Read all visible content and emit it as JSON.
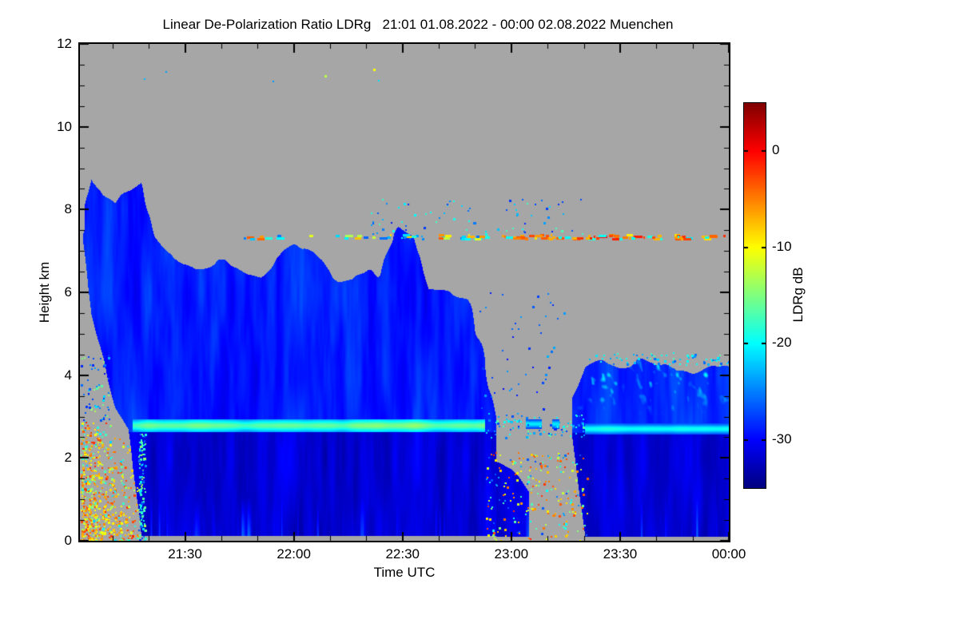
{
  "chart_data": {
    "type": "heatmap",
    "title": "Linear De-Polarization Ratio LDRg   21:01 01.08.2022 - 00:00 02.08.2022 Muenchen",
    "xlabel": "Time UTC",
    "ylabel": "Height km",
    "x_range": [
      21.0167,
      24.0
    ],
    "y_range": [
      0,
      12
    ],
    "x_ticks": [
      {
        "t": 21.5,
        "label": "21:30"
      },
      {
        "t": 22.0,
        "label": "22:00"
      },
      {
        "t": 22.5,
        "label": "22:30"
      },
      {
        "t": 23.0,
        "label": "23:00"
      },
      {
        "t": 23.5,
        "label": "23:30"
      },
      {
        "t": 24.0,
        "label": "00:00"
      }
    ],
    "x_minor_step_minutes": 10,
    "y_ticks": [
      {
        "h": 12,
        "label": "12"
      },
      {
        "h": 10,
        "label": "10"
      },
      {
        "h": 8,
        "label": "8"
      },
      {
        "h": 6,
        "label": "6"
      },
      {
        "h": 4,
        "label": "4"
      },
      {
        "h": 2,
        "label": "2"
      },
      {
        "h": 0,
        "label": "0"
      }
    ],
    "y_minor_step_km": 0.5,
    "grid": false,
    "background_no_data_color": "#a6a6a6",
    "colormap": "jet",
    "colorbar": {
      "label": "LDRg dB",
      "range": [
        -35,
        5
      ],
      "ticks": [
        {
          "v": 0,
          "label": "0"
        },
        {
          "v": -10,
          "label": "-10"
        },
        {
          "v": -20,
          "label": "-20"
        },
        {
          "v": -30,
          "label": "-30"
        }
      ]
    },
    "features": {
      "clouds": [
        {
          "name": "main-precipitating-cloud",
          "seed": 11,
          "t": [
            21.03,
            21.07,
            21.12,
            21.18,
            21.24,
            21.3,
            21.36,
            21.45,
            21.55,
            21.65,
            21.75,
            21.85,
            21.95,
            22.05,
            22.15,
            22.27,
            22.4,
            22.48,
            22.55,
            22.62,
            22.72,
            22.8,
            22.87,
            22.93
          ],
          "top": [
            8.0,
            9.1,
            8.5,
            8.1,
            8.6,
            9.0,
            7.8,
            7.1,
            6.7,
            6.9,
            6.5,
            6.3,
            6.9,
            7.0,
            6.7,
            6.4,
            7.0,
            7.8,
            7.6,
            6.5,
            6.3,
            5.9,
            4.8,
            3.2
          ],
          "bot_t": [
            21.03,
            21.07,
            21.12,
            21.18,
            21.24,
            21.3,
            22.93
          ],
          "bot": [
            7.3,
            5.5,
            4.4,
            3.4,
            2.8,
            0.12,
            0.12
          ],
          "value": -28.2,
          "rain_below": 2.62,
          "rain_value": -31.3,
          "ragged": 1.7,
          "streak": 2.6
        },
        {
          "name": "late-cloud-with-bright-top",
          "seed": 29,
          "t": [
            23.28,
            23.34,
            23.42,
            23.5,
            23.58,
            23.67,
            23.75,
            23.83,
            23.92,
            24.0
          ],
          "top": [
            3.4,
            4.15,
            4.3,
            4.25,
            4.35,
            4.2,
            4.35,
            4.25,
            4.3,
            4.2
          ],
          "bot_t": [
            23.28,
            23.34,
            24.0
          ],
          "bot": [
            2.6,
            0.1,
            0.1
          ],
          "value": -27.5,
          "rain_below": 2.6,
          "rain_value": -31.3,
          "ragged": 0.9,
          "streak": 2.2,
          "top_bright": true
        },
        {
          "name": "residual-rain-patch",
          "seed": 41,
          "t": [
            22.93,
            23.0,
            23.08
          ],
          "top": [
            2.0,
            1.8,
            1.2
          ],
          "bot_t": [
            22.93,
            23.08
          ],
          "bot": [
            0.1,
            0.1
          ],
          "value": -30.5,
          "rain_below": 2.6,
          "rain_value": -31.0,
          "ragged": 0.8,
          "streak": 2.0
        }
      ],
      "bright_bands": [
        {
          "t0": 21.26,
          "t1": 22.88,
          "h": 2.78,
          "half_width": 0.12,
          "value": -15.5,
          "vary": 7,
          "seed": 5
        },
        {
          "t0": 22.88,
          "t1": 23.22,
          "h": 2.82,
          "half_width": 0.09,
          "value": -20,
          "vary": 3,
          "patchy": true,
          "seed": 6
        },
        {
          "t0": 23.34,
          "t1": 24.0,
          "h": 2.7,
          "half_width": 0.1,
          "value": -19,
          "vary": 3.5,
          "seed": 7
        }
      ],
      "dash_line": {
        "h": 7.36,
        "segments": [
          {
            "t0": 21.75,
            "t1": 22.95,
            "count": 40,
            "values": [
              -20,
              -8,
              -5,
              -22,
              -12,
              -25
            ],
            "seed": 13
          },
          {
            "t0": 22.95,
            "t1": 24.0,
            "count": 75,
            "values": [
              -5,
              -3,
              -8,
              -1,
              -20,
              -7,
              -4
            ],
            "seed": 17
          }
        ]
      },
      "speckles": [
        {
          "name": "lower-left-receiver-noise",
          "t0": 21.02,
          "t1": 21.28,
          "h0": 0.0,
          "h1": 2.9,
          "count": 1600,
          "values": [
            -6,
            -4,
            -9,
            -12,
            -3,
            -16,
            -20,
            -8
          ],
          "mode": "triangle",
          "seed": 3
        },
        {
          "name": "gap-low-noise",
          "t0": 22.88,
          "t1": 23.35,
          "h0": 0.0,
          "h1": 2.15,
          "count": 230,
          "values": [
            -9,
            -5,
            -18,
            -25,
            -13,
            -3
          ],
          "seed": 8
        },
        {
          "name": "midlevel-stray-echoes",
          "t0": 22.35,
          "t1": 23.35,
          "h0": 7.3,
          "h1": 8.3,
          "count": 80,
          "values": [
            -25,
            -22,
            -27,
            -19
          ],
          "seed": 9
        },
        {
          "name": "band-edge-dots",
          "t0": 22.88,
          "t1": 23.34,
          "h0": 2.5,
          "h1": 3.1,
          "count": 90,
          "values": [
            -21,
            -24,
            -18,
            -27
          ],
          "seed": 10
        },
        {
          "name": "green-column-artifact",
          "t0": 21.285,
          "t1": 21.315,
          "h0": 0.0,
          "h1": 2.6,
          "count": 110,
          "values": [
            -17,
            -15,
            -20,
            -26
          ],
          "seed": 12
        },
        {
          "name": "late-cloud-top-speckle",
          "t0": 23.3,
          "t1": 24.0,
          "h0": 4.25,
          "h1": 4.55,
          "count": 70,
          "values": [
            -21,
            -18,
            -24
          ],
          "seed": 15
        },
        {
          "name": "stray-top-dots",
          "t0": 21.05,
          "t1": 22.6,
          "h0": 11.0,
          "h1": 11.45,
          "count": 6,
          "values": [
            -11,
            -25,
            -22
          ],
          "seed": 16
        },
        {
          "name": "gap-mid-dots",
          "t0": 22.85,
          "t1": 23.25,
          "h0": 3.2,
          "h1": 6.0,
          "count": 45,
          "values": [
            -27,
            -25,
            -29
          ],
          "seed": 18
        },
        {
          "name": "left-edge-speckle",
          "t0": 21.02,
          "t1": 21.15,
          "h0": 2.9,
          "h1": 4.5,
          "count": 60,
          "values": [
            -26,
            -23,
            -28,
            -15
          ],
          "seed": 19
        }
      ]
    }
  }
}
